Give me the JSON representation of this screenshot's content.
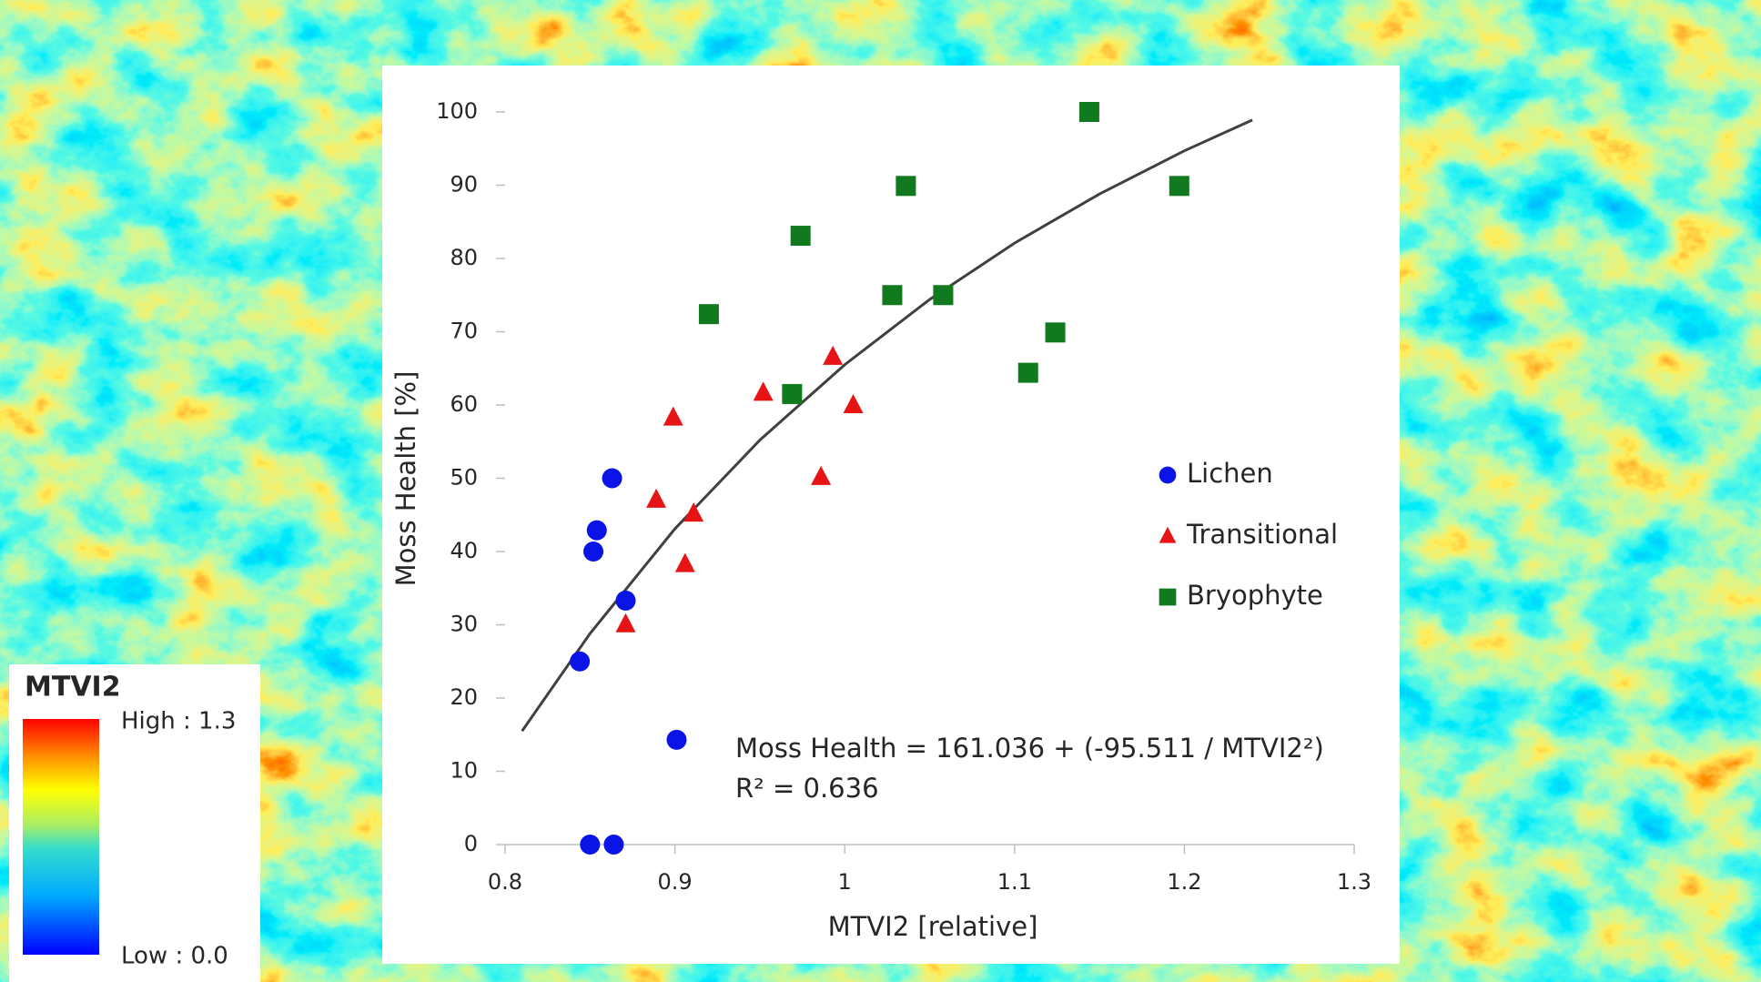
{
  "chart_data": {
    "type": "scatter",
    "x_label": "MTVI2 [relative]",
    "y_label": "Moss Health [%]",
    "xlim": [
      0.8,
      1.3
    ],
    "xticks": [
      0.8,
      0.9,
      1,
      1.1,
      1.2,
      1.3
    ],
    "ylim": [
      0,
      100
    ],
    "yticks": [
      0,
      10,
      20,
      30,
      40,
      50,
      60,
      70,
      80,
      90,
      100
    ],
    "grid": false,
    "legend": "right",
    "series": [
      {
        "name": "Lichen",
        "color": "#0a14e6",
        "marker": "circle",
        "x": [
          0.863,
          0.854,
          0.852,
          0.871,
          0.844,
          0.901,
          0.85,
          0.864
        ],
        "values": [
          50,
          42.9,
          40,
          33.3,
          25,
          14.3,
          0,
          0
        ]
      },
      {
        "name": "Transitional",
        "color": "#e61414",
        "marker": "triangle",
        "x": [
          0.899,
          0.889,
          0.911,
          0.906,
          0.871,
          0.952,
          0.993,
          1.005,
          0.986
        ],
        "values": [
          58.3,
          47.1,
          45.2,
          38.3,
          30.1,
          61.7,
          66.6,
          60,
          50.2
        ]
      },
      {
        "name": "Bryophyte",
        "color": "#117a1e",
        "marker": "square",
        "x": [
          0.92,
          0.974,
          0.969,
          1.036,
          1.028,
          1.058,
          1.108,
          1.124,
          1.144,
          1.197
        ],
        "values": [
          72.4,
          83.1,
          61.5,
          89.9,
          75,
          75,
          64.4,
          69.9,
          100,
          89.9
        ]
      }
    ],
    "trendline": {
      "color": "#404040",
      "x": [
        0.81,
        0.85,
        0.9,
        0.95,
        1.0,
        1.05,
        1.1,
        1.15,
        1.2,
        1.24
      ],
      "values": [
        15.5,
        28.8,
        43.1,
        55.2,
        65.5,
        74.4,
        82.1,
        88.8,
        94.7,
        98.9
      ]
    },
    "equation": "Moss Health = 161.036 + (-95.511 / MTVI2²)",
    "r_squared": "R² = 0.636"
  },
  "map_legend": {
    "title": "MTVI2",
    "high_label": "High : 1.3",
    "low_label": "Low : 0.0"
  }
}
